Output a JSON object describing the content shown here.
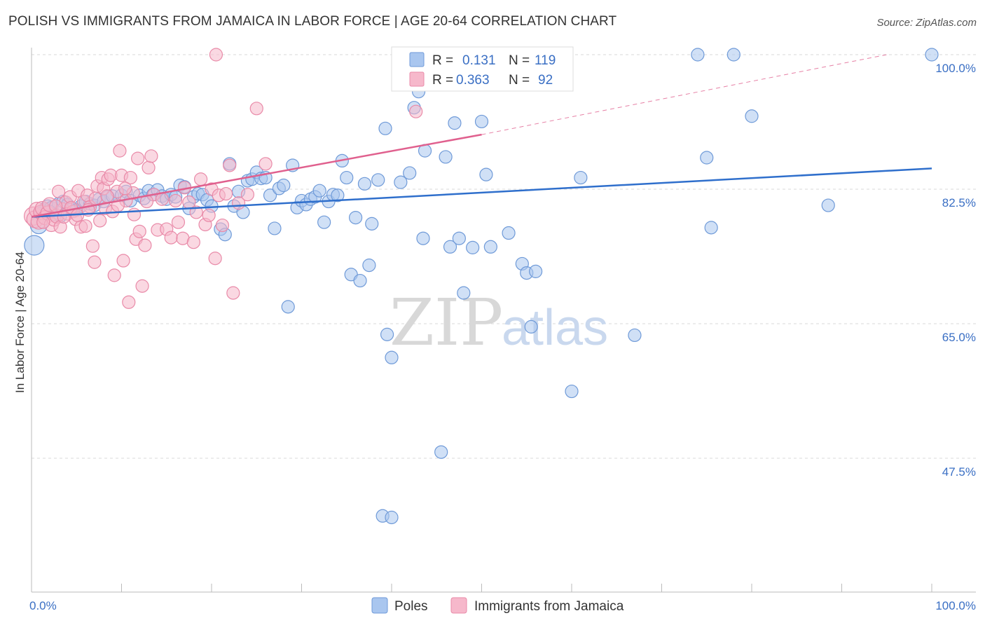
{
  "title": "POLISH VS IMMIGRANTS FROM JAMAICA IN LABOR FORCE | AGE 20-64 CORRELATION CHART",
  "source": "Source: ZipAtlas.com",
  "watermark": {
    "zip": "ZIP",
    "atlas": "atlas"
  },
  "colors": {
    "poles_fill": "#a9c6ef",
    "poles_stroke": "#6f9ad8",
    "poles_line": "#2f6fcc",
    "jamaica_fill": "#f6b8cb",
    "jamaica_stroke": "#e98aa8",
    "jamaica_line": "#e0608e",
    "grid": "#d9d9d9",
    "axis_label": "#3a6fc4"
  },
  "legend_box": {
    "rows": [
      {
        "r_label": "R =",
        "r_value": "0.131",
        "n_label": "N =",
        "n_value": "119"
      },
      {
        "r_label": "R =",
        "r_value": "0.363",
        "n_label": "N =",
        "n_value": "92"
      }
    ]
  },
  "bottom_legend": [
    "Poles",
    "Immigrants from Jamaica"
  ],
  "chart_data": {
    "type": "scatter",
    "title": "POLISH VS IMMIGRANTS FROM JAMAICA IN LABOR FORCE | AGE 20-64 CORRELATION CHART",
    "xlabel": "",
    "ylabel": "In Labor Force | Age 20-64",
    "xlim": [
      0,
      100
    ],
    "ylim": [
      33,
      102
    ],
    "x_tick_labels": [
      "0.0%",
      "100.0%"
    ],
    "y_ticks": [
      47.5,
      65.0,
      82.5,
      100.0
    ],
    "y_tick_labels": [
      "47.5%",
      "65.0%",
      "82.5%",
      "100.0%"
    ],
    "grid": "horizontal dashed",
    "legend_position": "top-center",
    "series": [
      {
        "name": "Poles",
        "R": 0.131,
        "N": 119,
        "trend": {
          "x": [
            0,
            100
          ],
          "y": [
            78.9,
            85.2
          ],
          "dashed_extension": false
        },
        "points": [
          [
            0.3,
            75.2,
            14
          ],
          [
            0.8,
            77.8,
            12
          ],
          [
            1.2,
            79.5,
            11
          ],
          [
            1.5,
            79.8,
            10
          ],
          [
            1.8,
            80.2,
            10
          ],
          [
            2.2,
            80.0,
            10
          ],
          [
            2.6,
            79.2,
            9
          ],
          [
            3.0,
            80.6,
            9
          ],
          [
            3.5,
            80.9,
            9
          ],
          [
            4.0,
            80.5,
            9
          ],
          [
            4.5,
            80.0,
            9
          ],
          [
            5.0,
            79.8,
            9
          ],
          [
            5.5,
            80.3,
            9
          ],
          [
            6.0,
            80.9,
            9
          ],
          [
            6.5,
            80.6,
            9
          ],
          [
            7.0,
            80.4,
            9
          ],
          [
            7.5,
            81.2,
            9
          ],
          [
            8.0,
            80.9,
            9
          ],
          [
            8.5,
            81.5,
            9
          ],
          [
            9.0,
            81.6,
            9
          ],
          [
            10.0,
            81.7,
            9
          ],
          [
            10.5,
            82.2,
            9
          ],
          [
            11.0,
            81.0,
            9
          ],
          [
            12.0,
            81.7,
            9
          ],
          [
            12.5,
            81.3,
            9
          ],
          [
            13.0,
            82.3,
            9
          ],
          [
            13.5,
            81.8,
            9
          ],
          [
            14.0,
            82.4,
            9
          ],
          [
            14.5,
            81.6,
            9
          ],
          [
            15.0,
            81.2,
            9
          ],
          [
            15.5,
            81.8,
            9
          ],
          [
            16.0,
            81.5,
            9
          ],
          [
            16.5,
            83.0,
            9
          ],
          [
            17.0,
            82.8,
            9
          ],
          [
            17.5,
            80.0,
            9
          ],
          [
            18.0,
            81.5,
            9
          ],
          [
            18.5,
            81.9,
            9
          ],
          [
            19.0,
            81.8,
            9
          ],
          [
            19.5,
            81.1,
            9
          ],
          [
            20.0,
            80.3,
            9
          ],
          [
            21.0,
            77.3,
            9
          ],
          [
            21.5,
            76.6,
            9
          ],
          [
            22.0,
            85.8,
            9
          ],
          [
            22.5,
            80.3,
            9
          ],
          [
            23.0,
            82.2,
            9
          ],
          [
            23.5,
            79.5,
            9
          ],
          [
            24.0,
            83.6,
            9
          ],
          [
            24.5,
            83.8,
            9
          ],
          [
            25.0,
            84.7,
            9
          ],
          [
            25.5,
            83.9,
            9
          ],
          [
            26.0,
            84.0,
            9
          ],
          [
            26.5,
            81.7,
            9
          ],
          [
            27.0,
            77.4,
            9
          ],
          [
            27.5,
            82.6,
            9
          ],
          [
            28.0,
            83.0,
            9
          ],
          [
            28.5,
            67.2,
            9
          ],
          [
            29.0,
            85.6,
            9
          ],
          [
            29.5,
            80.1,
            9
          ],
          [
            30.0,
            81.0,
            9
          ],
          [
            30.5,
            80.5,
            9
          ],
          [
            31.0,
            81.2,
            9
          ],
          [
            31.5,
            81.5,
            9
          ],
          [
            32.0,
            82.3,
            9
          ],
          [
            32.5,
            78.2,
            9
          ],
          [
            33.0,
            80.9,
            9
          ],
          [
            33.5,
            81.8,
            9
          ],
          [
            34.0,
            81.7,
            9
          ],
          [
            34.5,
            86.2,
            9
          ],
          [
            35.0,
            84.0,
            9
          ],
          [
            35.5,
            71.4,
            9
          ],
          [
            36.0,
            78.8,
            9
          ],
          [
            36.5,
            70.6,
            9
          ],
          [
            37.0,
            83.2,
            9
          ],
          [
            37.5,
            72.6,
            9
          ],
          [
            37.8,
            78.0,
            9
          ],
          [
            38.5,
            83.7,
            9
          ],
          [
            39.0,
            40.0,
            9
          ],
          [
            39.3,
            90.4,
            9
          ],
          [
            40.0,
            39.8,
            9
          ],
          [
            39.5,
            63.6,
            9
          ],
          [
            40.0,
            60.6,
            9
          ],
          [
            41.0,
            83.4,
            9
          ],
          [
            42.0,
            84.6,
            9
          ],
          [
            42.5,
            93.1,
            9
          ],
          [
            43.0,
            95.2,
            9
          ],
          [
            43.5,
            76.1,
            9
          ],
          [
            43.7,
            87.5,
            9
          ],
          [
            45.0,
            99.8,
            9
          ],
          [
            45.5,
            48.3,
            9
          ],
          [
            46.0,
            86.7,
            9
          ],
          [
            46.5,
            75.0,
            9
          ],
          [
            47.0,
            91.1,
            9
          ],
          [
            47.5,
            76.1,
            9
          ],
          [
            48.0,
            69.0,
            9
          ],
          [
            48.5,
            100.0,
            9
          ],
          [
            49.0,
            74.9,
            9
          ],
          [
            50.0,
            91.3,
            9
          ],
          [
            50.5,
            84.4,
            9
          ],
          [
            51.0,
            75.0,
            9
          ],
          [
            52.0,
            99.9,
            9
          ],
          [
            53.0,
            76.8,
            9
          ],
          [
            54.5,
            72.8,
            9
          ],
          [
            55.0,
            71.6,
            9
          ],
          [
            55.5,
            64.6,
            9
          ],
          [
            56.0,
            71.8,
            9
          ],
          [
            58.0,
            98.0,
            9
          ],
          [
            60.0,
            56.2,
            9
          ],
          [
            61.0,
            84.0,
            9
          ],
          [
            67.0,
            63.5,
            9
          ],
          [
            74.0,
            100.0,
            9
          ],
          [
            75.0,
            86.6,
            9
          ],
          [
            75.5,
            77.5,
            9
          ],
          [
            78.0,
            100.0,
            9
          ],
          [
            80.0,
            92.0,
            9
          ],
          [
            88.5,
            80.4,
            9
          ],
          [
            100.0,
            100.0,
            9
          ],
          [
            1.0,
            79.3,
            9
          ],
          [
            2.0,
            79.6,
            9
          ],
          [
            3.2,
            79.0,
            9
          ]
        ]
      },
      {
        "name": "Immigrants from Jamaica",
        "R": 0.363,
        "N": 92,
        "trend": {
          "x": [
            0,
            50
          ],
          "y": [
            78.9,
            89.6
          ],
          "dashed_extension": true,
          "extension_to": [
            95,
            100.0
          ]
        },
        "points": [
          [
            0.2,
            79.0,
            13
          ],
          [
            0.4,
            78.6,
            12
          ],
          [
            0.6,
            79.8,
            11
          ],
          [
            0.8,
            78.3,
            11
          ],
          [
            1.0,
            79.5,
            10
          ],
          [
            1.2,
            80.0,
            10
          ],
          [
            1.5,
            78.8,
            10
          ],
          [
            1.8,
            79.4,
            10
          ],
          [
            2.0,
            80.5,
            10
          ],
          [
            2.2,
            77.9,
            10
          ],
          [
            2.5,
            78.6,
            10
          ],
          [
            2.8,
            79.0,
            10
          ],
          [
            3.0,
            82.2,
            9
          ],
          [
            3.2,
            77.6,
            9
          ],
          [
            3.5,
            79.9,
            9
          ],
          [
            3.8,
            80.8,
            9
          ],
          [
            4.0,
            79.3,
            9
          ],
          [
            4.3,
            81.5,
            9
          ],
          [
            4.6,
            79.6,
            9
          ],
          [
            4.9,
            78.6,
            9
          ],
          [
            5.2,
            82.3,
            9
          ],
          [
            5.5,
            77.6,
            9
          ],
          [
            5.8,
            80.9,
            9
          ],
          [
            6.0,
            77.7,
            9
          ],
          [
            6.2,
            81.7,
            9
          ],
          [
            6.5,
            80.2,
            9
          ],
          [
            6.8,
            75.1,
            9
          ],
          [
            7.0,
            73.0,
            9
          ],
          [
            7.3,
            82.9,
            9
          ],
          [
            7.6,
            78.4,
            9
          ],
          [
            7.8,
            84.0,
            9
          ],
          [
            8.0,
            82.6,
            9
          ],
          [
            8.2,
            80.0,
            9
          ],
          [
            8.5,
            83.8,
            9
          ],
          [
            8.8,
            84.3,
            9
          ],
          [
            9.0,
            79.6,
            9
          ],
          [
            9.2,
            71.3,
            9
          ],
          [
            9.5,
            82.2,
            9
          ],
          [
            9.8,
            87.5,
            9
          ],
          [
            10.0,
            84.3,
            9
          ],
          [
            10.2,
            73.2,
            9
          ],
          [
            10.5,
            81.0,
            9
          ],
          [
            10.8,
            67.8,
            9
          ],
          [
            11.0,
            84.0,
            9
          ],
          [
            11.3,
            82.0,
            9
          ],
          [
            11.6,
            76.0,
            9
          ],
          [
            11.8,
            86.5,
            9
          ],
          [
            12.0,
            77.0,
            9
          ],
          [
            12.3,
            69.9,
            9
          ],
          [
            12.6,
            75.2,
            9
          ],
          [
            13.0,
            85.3,
            9
          ],
          [
            13.3,
            86.8,
            9
          ],
          [
            13.6,
            81.8,
            9
          ],
          [
            14.0,
            77.2,
            9
          ],
          [
            14.5,
            81.2,
            9
          ],
          [
            15.0,
            77.3,
            9
          ],
          [
            15.5,
            76.2,
            9
          ],
          [
            16.0,
            81.0,
            9
          ],
          [
            16.3,
            78.2,
            9
          ],
          [
            16.8,
            76.1,
            9
          ],
          [
            17.0,
            82.7,
            9
          ],
          [
            17.5,
            80.8,
            9
          ],
          [
            18.0,
            75.6,
            9
          ],
          [
            18.3,
            79.5,
            9
          ],
          [
            18.8,
            83.8,
            9
          ],
          [
            19.3,
            77.9,
            9
          ],
          [
            19.7,
            79.1,
            9
          ],
          [
            20.0,
            82.5,
            9
          ],
          [
            20.4,
            73.5,
            9
          ],
          [
            20.8,
            81.7,
            9
          ],
          [
            21.2,
            77.8,
            9
          ],
          [
            21.6,
            81.9,
            9
          ],
          [
            22.0,
            85.6,
            9
          ],
          [
            22.4,
            69.0,
            9
          ],
          [
            23.0,
            80.7,
            9
          ],
          [
            24.0,
            81.8,
            9
          ],
          [
            20.5,
            100.0,
            9
          ],
          [
            25.0,
            93.0,
            9
          ],
          [
            26.0,
            85.8,
            9
          ],
          [
            42.7,
            92.6,
            9
          ],
          [
            1.3,
            78.2,
            9
          ],
          [
            2.7,
            80.3,
            9
          ],
          [
            3.6,
            78.9,
            9
          ],
          [
            4.4,
            80.1,
            9
          ],
          [
            5.1,
            79.1,
            9
          ],
          [
            6.3,
            79.8,
            9
          ],
          [
            7.1,
            81.3,
            9
          ],
          [
            8.4,
            81.6,
            9
          ],
          [
            9.6,
            80.4,
            9
          ],
          [
            10.4,
            82.6,
            9
          ],
          [
            11.4,
            79.2,
            9
          ],
          [
            12.8,
            80.9,
            9
          ]
        ]
      }
    ]
  }
}
